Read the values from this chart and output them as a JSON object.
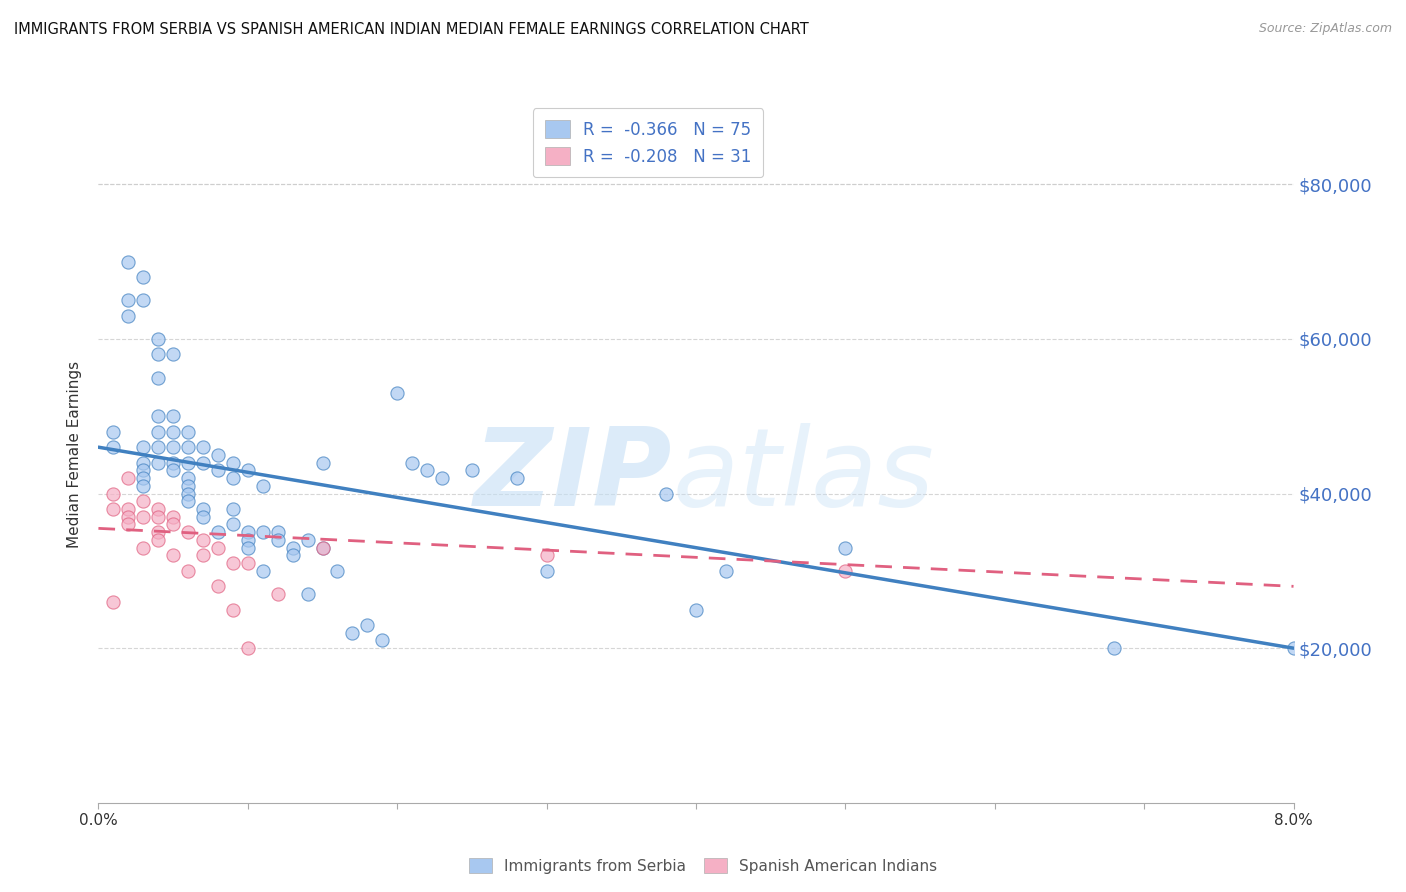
{
  "title": "IMMIGRANTS FROM SERBIA VS SPANISH AMERICAN INDIAN MEDIAN FEMALE EARNINGS CORRELATION CHART",
  "source": "Source: ZipAtlas.com",
  "ylabel": "Median Female Earnings",
  "xlim": [
    0.0,
    0.08
  ],
  "ylim": [
    0,
    90000
  ],
  "yticks": [
    0,
    20000,
    40000,
    60000,
    80000
  ],
  "ytick_labels": [
    "",
    "$20,000",
    "$40,000",
    "$60,000",
    "$80,000"
  ],
  "xticks": [
    0.0,
    0.01,
    0.02,
    0.03,
    0.04,
    0.05,
    0.06,
    0.07,
    0.08
  ],
  "xtick_labels": [
    "0.0%",
    "",
    "",
    "",
    "",
    "",
    "",
    "",
    "8.0%"
  ],
  "color_blue": "#a8c8f0",
  "color_pink": "#f5b0c5",
  "line_blue": "#4080c0",
  "line_pink": "#e06080",
  "blue_scatter_x": [
    0.001,
    0.001,
    0.002,
    0.002,
    0.002,
    0.003,
    0.003,
    0.003,
    0.003,
    0.003,
    0.003,
    0.003,
    0.004,
    0.004,
    0.004,
    0.004,
    0.004,
    0.004,
    0.004,
    0.005,
    0.005,
    0.005,
    0.005,
    0.005,
    0.005,
    0.006,
    0.006,
    0.006,
    0.006,
    0.006,
    0.006,
    0.006,
    0.007,
    0.007,
    0.007,
    0.007,
    0.008,
    0.008,
    0.008,
    0.009,
    0.009,
    0.009,
    0.009,
    0.01,
    0.01,
    0.01,
    0.01,
    0.011,
    0.011,
    0.011,
    0.012,
    0.012,
    0.013,
    0.013,
    0.014,
    0.014,
    0.015,
    0.015,
    0.016,
    0.017,
    0.018,
    0.019,
    0.02,
    0.021,
    0.022,
    0.023,
    0.025,
    0.028,
    0.03,
    0.038,
    0.04,
    0.042,
    0.05,
    0.068,
    0.08
  ],
  "blue_scatter_y": [
    48000,
    46000,
    70000,
    65000,
    63000,
    68000,
    65000,
    46000,
    44000,
    43000,
    42000,
    41000,
    60000,
    58000,
    55000,
    50000,
    48000,
    46000,
    44000,
    58000,
    50000,
    48000,
    46000,
    44000,
    43000,
    48000,
    46000,
    44000,
    42000,
    41000,
    40000,
    39000,
    46000,
    44000,
    38000,
    37000,
    45000,
    43000,
    35000,
    44000,
    42000,
    38000,
    36000,
    43000,
    35000,
    34000,
    33000,
    41000,
    35000,
    30000,
    35000,
    34000,
    33000,
    32000,
    34000,
    27000,
    44000,
    33000,
    30000,
    22000,
    23000,
    21000,
    53000,
    44000,
    43000,
    42000,
    43000,
    42000,
    30000,
    40000,
    25000,
    30000,
    33000,
    20000,
    20000
  ],
  "pink_scatter_x": [
    0.001,
    0.001,
    0.001,
    0.002,
    0.002,
    0.002,
    0.002,
    0.003,
    0.003,
    0.003,
    0.004,
    0.004,
    0.004,
    0.004,
    0.005,
    0.005,
    0.005,
    0.006,
    0.006,
    0.007,
    0.007,
    0.008,
    0.008,
    0.009,
    0.009,
    0.01,
    0.01,
    0.012,
    0.015,
    0.03,
    0.05
  ],
  "pink_scatter_y": [
    40000,
    38000,
    26000,
    42000,
    38000,
    37000,
    36000,
    39000,
    37000,
    33000,
    38000,
    37000,
    35000,
    34000,
    37000,
    36000,
    32000,
    35000,
    30000,
    34000,
    32000,
    33000,
    28000,
    31000,
    25000,
    31000,
    20000,
    27000,
    33000,
    32000,
    30000
  ],
  "blue_line_x": [
    0.0,
    0.08
  ],
  "blue_line_y": [
    46000,
    20000
  ],
  "pink_line_x": [
    0.0,
    0.08
  ],
  "pink_line_y": [
    35500,
    28000
  ],
  "grid_color": "#cccccc",
  "axis_label_color": "#4472c4",
  "text_color": "#333333"
}
